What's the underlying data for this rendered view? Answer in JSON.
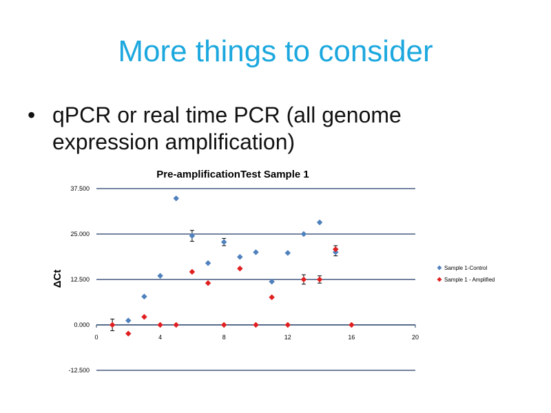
{
  "slide": {
    "title": "More things to consider",
    "bullet_symbol": "•",
    "bullet_text": "qPCR or real time PCR (all genome\nexpression  amplification)"
  },
  "chart_data": {
    "type": "scatter",
    "title": "Pre-amplificationTest Sample 1",
    "xlabel": "",
    "ylabel": "ΔCt",
    "xlim": [
      0,
      20
    ],
    "ylim": [
      -12.5,
      37.5
    ],
    "x_ticks": [
      0,
      4,
      8,
      12,
      16,
      20
    ],
    "y_ticks": [
      -12.5,
      0,
      12.5,
      25,
      37.5
    ],
    "y_tick_labels": [
      "-12.500",
      "0.000",
      "12.500",
      "25.000",
      "37.500"
    ],
    "grid": "horizontal",
    "legend_position": "right",
    "series": [
      {
        "name": "Sample 1-Control",
        "color": "#4f81bd",
        "marker": "diamond",
        "points": [
          {
            "x": 2,
            "y": 1.2
          },
          {
            "x": 3,
            "y": 7.8
          },
          {
            "x": 4,
            "y": 13.5
          },
          {
            "x": 5,
            "y": 34.8
          },
          {
            "x": 6,
            "y": 24.5,
            "err": 1.5
          },
          {
            "x": 7,
            "y": 17.0
          },
          {
            "x": 8,
            "y": 22.8,
            "err": 1.0
          },
          {
            "x": 9,
            "y": 18.7
          },
          {
            "x": 10,
            "y": 20.0
          },
          {
            "x": 11,
            "y": 11.9
          },
          {
            "x": 12,
            "y": 19.8
          },
          {
            "x": 13,
            "y": 25.0
          },
          {
            "x": 14,
            "y": 28.2
          },
          {
            "x": 15,
            "y": 20.0,
            "err": 1.0
          }
        ]
      },
      {
        "name": "Sample 1 -  Amplified",
        "color": "#e02020",
        "marker": "diamond",
        "points": [
          {
            "x": 1,
            "y": 0.0,
            "err": 1.6
          },
          {
            "x": 2,
            "y": -2.4
          },
          {
            "x": 3,
            "y": 2.2
          },
          {
            "x": 4,
            "y": 0.0
          },
          {
            "x": 5,
            "y": 0.0
          },
          {
            "x": 6,
            "y": 14.6
          },
          {
            "x": 7,
            "y": 11.5
          },
          {
            "x": 8,
            "y": 0.0
          },
          {
            "x": 9,
            "y": 15.5
          },
          {
            "x": 10,
            "y": 0.0
          },
          {
            "x": 11,
            "y": 7.6
          },
          {
            "x": 12,
            "y": 0.0
          },
          {
            "x": 13,
            "y": 12.5,
            "err": 1.3
          },
          {
            "x": 14,
            "y": 12.5,
            "err": 1.0
          },
          {
            "x": 15,
            "y": 20.8,
            "err": 1.0
          },
          {
            "x": 16,
            "y": 0.0
          }
        ]
      }
    ]
  }
}
